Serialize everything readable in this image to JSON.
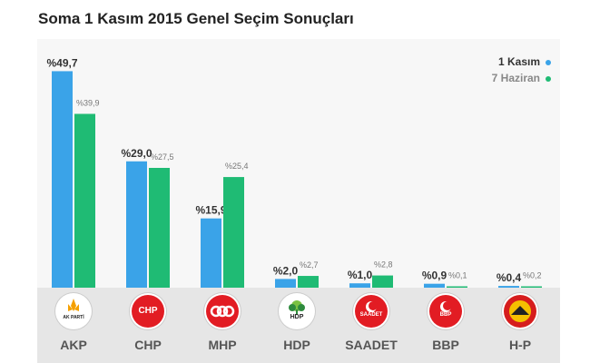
{
  "page": {
    "title": "Soma 1 Kasım 2015 Genel Seçim Sonuçları"
  },
  "chart_data": {
    "type": "bar",
    "title": "Soma 1 Kasım 2015 Genel Seçim Sonuçları",
    "categories": [
      "AKP",
      "CHP",
      "MHP",
      "HDP",
      "SAADET",
      "BBP",
      "H-P"
    ],
    "series": [
      {
        "name": "1 Kasım",
        "color": "#3aa3e8",
        "values": [
          49.7,
          29.0,
          15.9,
          2.0,
          1.0,
          0.9,
          0.4
        ],
        "labels": [
          "%49,7",
          "%29,0",
          "%15,9",
          "%2,0",
          "%1,0",
          "%0,9",
          "%0,4"
        ]
      },
      {
        "name": "7 Haziran",
        "color": "#1fbb74",
        "values": [
          39.9,
          27.5,
          25.4,
          2.7,
          2.8,
          0.1,
          0.2
        ],
        "labels": [
          "%39,9",
          "%27,5",
          "%25,4",
          "%2,7",
          "%2,8",
          "%0,1",
          "%0,2"
        ]
      }
    ],
    "ylim": [
      0,
      50
    ],
    "grid": false,
    "legend": "top-right",
    "logos": [
      {
        "icon": "ak-parti-logo-icon",
        "text": "AK PARTİ",
        "color": "#f5a000"
      },
      {
        "icon": "chp-logo-icon",
        "text": "CHP",
        "color": "#e21c23"
      },
      {
        "icon": "mhp-logo-icon",
        "text": "",
        "color": "#e21c23"
      },
      {
        "icon": "hdp-logo-icon",
        "text": "HDP",
        "color": "#2e8b3e"
      },
      {
        "icon": "saadet-logo-icon",
        "text": "SAADET",
        "color": "#e21c23"
      },
      {
        "icon": "bbp-logo-icon",
        "text": "BBP",
        "color": "#e21c23"
      },
      {
        "icon": "hak-ve-ozgurlukler-logo-icon",
        "text": "",
        "color": "#d61d1d"
      }
    ]
  }
}
